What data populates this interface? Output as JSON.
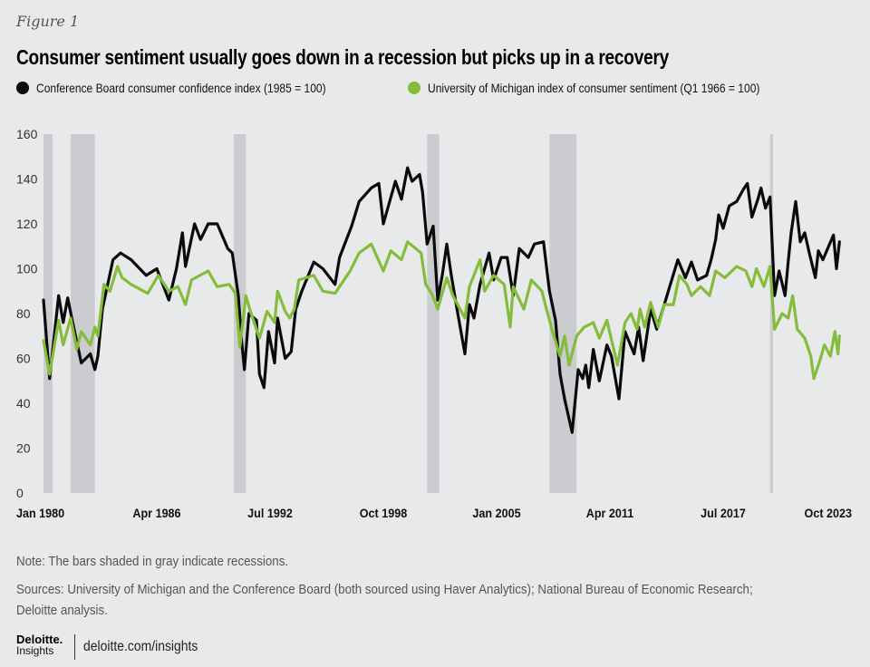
{
  "figure_label": "Figure 1",
  "chart_data": {
    "type": "line",
    "title": "Consumer sentiment usually goes down in a recession but picks up in a recovery",
    "xlabel": "",
    "ylabel": "",
    "ylim": [
      0,
      160
    ],
    "y_ticks": [
      "0",
      "20",
      "40",
      "60",
      "80",
      "100",
      "120",
      "140",
      "160"
    ],
    "x_range": [
      "1980-01",
      "2023-12"
    ],
    "x_ticks": [
      {
        "date": "1980-01",
        "label": "Jan 1980"
      },
      {
        "date": "1986-04",
        "label": "Apr 1986"
      },
      {
        "date": "1992-07",
        "label": "Jul 1992"
      },
      {
        "date": "1998-10",
        "label": "Oct 1998"
      },
      {
        "date": "2005-01",
        "label": "Jan 2005"
      },
      {
        "date": "2011-04",
        "label": "Apr 2011"
      },
      {
        "date": "2017-07",
        "label": "Jul 2017"
      },
      {
        "date": "2023-10",
        "label": "Oct 2023"
      }
    ],
    "grid": false,
    "legend_position": "top-left",
    "recessions": [
      [
        "1980-01",
        "1980-07"
      ],
      [
        "1981-07",
        "1982-11"
      ],
      [
        "1990-07",
        "1991-03"
      ],
      [
        "2001-03",
        "2001-11"
      ],
      [
        "2007-12",
        "2009-06"
      ],
      [
        "2020-02",
        "2020-04"
      ]
    ],
    "recession_color": "#cbcccf",
    "series": [
      {
        "name": "Conference Board consumer confidence index (1985 = 100)",
        "color": "#0a0a0a",
        "points": [
          [
            "1980-01",
            86
          ],
          [
            "1980-05",
            51
          ],
          [
            "1980-11",
            88
          ],
          [
            "1981-02",
            76
          ],
          [
            "1981-05",
            87
          ],
          [
            "1981-08",
            77
          ],
          [
            "1982-02",
            58
          ],
          [
            "1982-08",
            62
          ],
          [
            "1982-11",
            55
          ],
          [
            "1983-01",
            61
          ],
          [
            "1983-04",
            82
          ],
          [
            "1983-11",
            104
          ],
          [
            "1984-04",
            107
          ],
          [
            "1984-11",
            104
          ],
          [
            "1985-09",
            97
          ],
          [
            "1986-04",
            100
          ],
          [
            "1986-12",
            86
          ],
          [
            "1987-05",
            100
          ],
          [
            "1987-09",
            116
          ],
          [
            "1987-11",
            101
          ],
          [
            "1988-05",
            120
          ],
          [
            "1988-09",
            113
          ],
          [
            "1989-02",
            120
          ],
          [
            "1989-08",
            120
          ],
          [
            "1990-03",
            109
          ],
          [
            "1990-06",
            107
          ],
          [
            "1990-10",
            88
          ],
          [
            "1990-12",
            69
          ],
          [
            "1991-02",
            55
          ],
          [
            "1991-05",
            80
          ],
          [
            "1991-10",
            77
          ],
          [
            "1991-12",
            53
          ],
          [
            "1992-03",
            47
          ],
          [
            "1992-06",
            72
          ],
          [
            "1992-10",
            58
          ],
          [
            "1992-12",
            78
          ],
          [
            "1993-05",
            60
          ],
          [
            "1993-09",
            63
          ],
          [
            "1993-12",
            82
          ],
          [
            "1994-04",
            90
          ],
          [
            "1994-12",
            103
          ],
          [
            "1995-06",
            100
          ],
          [
            "1996-02",
            93
          ],
          [
            "1996-05",
            105
          ],
          [
            "1996-09",
            112
          ],
          [
            "1997-01",
            119
          ],
          [
            "1997-06",
            130
          ],
          [
            "1998-02",
            136
          ],
          [
            "1998-07",
            138
          ],
          [
            "1998-10",
            120
          ],
          [
            "1999-06",
            139
          ],
          [
            "1999-10",
            131
          ],
          [
            "2000-02",
            145
          ],
          [
            "2000-05",
            139
          ],
          [
            "2000-10",
            142
          ],
          [
            "2000-12",
            134
          ],
          [
            "2001-03",
            111
          ],
          [
            "2001-07",
            119
          ],
          [
            "2001-10",
            86
          ],
          [
            "2002-01",
            97
          ],
          [
            "2002-04",
            111
          ],
          [
            "2002-07",
            97
          ],
          [
            "2002-11",
            81
          ],
          [
            "2003-04",
            62
          ],
          [
            "2003-07",
            84
          ],
          [
            "2003-10",
            78
          ],
          [
            "2004-02",
            93
          ],
          [
            "2004-08",
            107
          ],
          [
            "2004-11",
            95
          ],
          [
            "2005-04",
            105
          ],
          [
            "2005-08",
            105
          ],
          [
            "2005-12",
            88
          ],
          [
            "2006-04",
            109
          ],
          [
            "2006-10",
            105
          ],
          [
            "2007-02",
            111
          ],
          [
            "2007-08",
            112
          ],
          [
            "2007-12",
            90
          ],
          [
            "2008-04",
            77
          ],
          [
            "2008-07",
            53
          ],
          [
            "2008-10",
            42
          ],
          [
            "2009-03",
            27
          ],
          [
            "2009-07",
            55
          ],
          [
            "2009-10",
            51
          ],
          [
            "2009-12",
            57
          ],
          [
            "2010-02",
            47
          ],
          [
            "2010-05",
            64
          ],
          [
            "2010-09",
            50
          ],
          [
            "2011-02",
            66
          ],
          [
            "2011-05",
            61
          ],
          [
            "2011-10",
            42
          ],
          [
            "2012-02",
            72
          ],
          [
            "2012-08",
            62
          ],
          [
            "2012-11",
            74
          ],
          [
            "2013-02",
            59
          ],
          [
            "2013-07",
            82
          ],
          [
            "2013-11",
            73
          ],
          [
            "2014-04",
            84
          ],
          [
            "2014-08",
            93
          ],
          [
            "2015-01",
            104
          ],
          [
            "2015-06",
            96
          ],
          [
            "2015-10",
            103
          ],
          [
            "2016-02",
            95
          ],
          [
            "2016-08",
            97
          ],
          [
            "2016-11",
            104
          ],
          [
            "2017-02",
            113
          ],
          [
            "2017-04",
            124
          ],
          [
            "2017-07",
            118
          ],
          [
            "2017-11",
            128
          ],
          [
            "2018-04",
            130
          ],
          [
            "2018-08",
            135
          ],
          [
            "2018-11",
            138
          ],
          [
            "2019-02",
            123
          ],
          [
            "2019-06",
            131
          ],
          [
            "2019-08",
            136
          ],
          [
            "2019-11",
            127
          ],
          [
            "2020-02",
            132
          ],
          [
            "2020-05",
            88
          ],
          [
            "2020-08",
            99
          ],
          [
            "2020-12",
            88
          ],
          [
            "2021-02",
            103
          ],
          [
            "2021-04",
            116
          ],
          [
            "2021-07",
            130
          ],
          [
            "2021-10",
            112
          ],
          [
            "2022-01",
            116
          ],
          [
            "2022-04",
            107
          ],
          [
            "2022-08",
            96
          ],
          [
            "2022-10",
            108
          ],
          [
            "2023-01",
            104
          ],
          [
            "2023-08",
            115
          ],
          [
            "2023-10",
            100
          ],
          [
            "2023-12",
            112
          ]
        ]
      },
      {
        "name": "University of Michigan index of consumer sentiment (Q1 1966 = 100)",
        "color": "#86bc3b",
        "points": [
          [
            "1980-01",
            68
          ],
          [
            "1980-05",
            53
          ],
          [
            "1980-11",
            77
          ],
          [
            "1981-02",
            66
          ],
          [
            "1981-07",
            78
          ],
          [
            "1981-11",
            64
          ],
          [
            "1982-02",
            72
          ],
          [
            "1982-05",
            69
          ],
          [
            "1982-08",
            66
          ],
          [
            "1982-11",
            74
          ],
          [
            "1983-01",
            70
          ],
          [
            "1983-05",
            93
          ],
          [
            "1983-09",
            90
          ],
          [
            "1984-02",
            101
          ],
          [
            "1984-05",
            96
          ],
          [
            "1984-11",
            93
          ],
          [
            "1985-10",
            89
          ],
          [
            "1986-05",
            97
          ],
          [
            "1986-12",
            90
          ],
          [
            "1987-06",
            92
          ],
          [
            "1987-11",
            84
          ],
          [
            "1988-03",
            95
          ],
          [
            "1989-02",
            99
          ],
          [
            "1989-08",
            92
          ],
          [
            "1990-04",
            93
          ],
          [
            "1990-08",
            89
          ],
          [
            "1990-11",
            65
          ],
          [
            "1991-03",
            88
          ],
          [
            "1991-06",
            81
          ],
          [
            "1991-12",
            69
          ],
          [
            "1992-05",
            81
          ],
          [
            "1992-10",
            76
          ],
          [
            "1992-12",
            90
          ],
          [
            "1993-05",
            81
          ],
          [
            "1993-08",
            78
          ],
          [
            "1993-11",
            82
          ],
          [
            "1994-02",
            95
          ],
          [
            "1994-12",
            97
          ],
          [
            "1995-06",
            90
          ],
          [
            "1996-02",
            89
          ],
          [
            "1996-12",
            99
          ],
          [
            "1997-06",
            107
          ],
          [
            "1998-02",
            111
          ],
          [
            "1998-10",
            99
          ],
          [
            "1999-03",
            108
          ],
          [
            "1999-10",
            104
          ],
          [
            "2000-02",
            112
          ],
          [
            "2000-11",
            107
          ],
          [
            "2001-02",
            93
          ],
          [
            "2001-06",
            89
          ],
          [
            "2001-10",
            82
          ],
          [
            "2002-04",
            96
          ],
          [
            "2002-08",
            88
          ],
          [
            "2003-04",
            78
          ],
          [
            "2003-07",
            92
          ],
          [
            "2004-02",
            104
          ],
          [
            "2004-05",
            90
          ],
          [
            "2004-11",
            97
          ],
          [
            "2005-06",
            93
          ],
          [
            "2005-10",
            74
          ],
          [
            "2005-12",
            92
          ],
          [
            "2006-07",
            82
          ],
          [
            "2006-12",
            95
          ],
          [
            "2007-07",
            90
          ],
          [
            "2007-10",
            82
          ],
          [
            "2008-02",
            72
          ],
          [
            "2008-07",
            61
          ],
          [
            "2008-10",
            70
          ],
          [
            "2009-01",
            57
          ],
          [
            "2009-06",
            70
          ],
          [
            "2009-11",
            74
          ],
          [
            "2010-05",
            76
          ],
          [
            "2010-09",
            69
          ],
          [
            "2011-02",
            77
          ],
          [
            "2011-09",
            57
          ],
          [
            "2012-02",
            76
          ],
          [
            "2012-06",
            80
          ],
          [
            "2012-10",
            73
          ],
          [
            "2012-12",
            82
          ],
          [
            "2013-03",
            74
          ],
          [
            "2013-07",
            85
          ],
          [
            "2013-12",
            74
          ],
          [
            "2014-04",
            84
          ],
          [
            "2014-10",
            84
          ],
          [
            "2015-02",
            97
          ],
          [
            "2015-07",
            93
          ],
          [
            "2015-10",
            88
          ],
          [
            "2016-04",
            92
          ],
          [
            "2016-10",
            88
          ],
          [
            "2017-02",
            99
          ],
          [
            "2017-08",
            96
          ],
          [
            "2018-04",
            101
          ],
          [
            "2018-10",
            99
          ],
          [
            "2019-02",
            92
          ],
          [
            "2019-05",
            100
          ],
          [
            "2019-10",
            92
          ],
          [
            "2020-02",
            101
          ],
          [
            "2020-05",
            73
          ],
          [
            "2020-10",
            80
          ],
          [
            "2021-02",
            78
          ],
          [
            "2021-05",
            88
          ],
          [
            "2021-08",
            73
          ],
          [
            "2022-01",
            69
          ],
          [
            "2022-05",
            61
          ],
          [
            "2022-07",
            51
          ],
          [
            "2022-11",
            59
          ],
          [
            "2023-02",
            66
          ],
          [
            "2023-06",
            61
          ],
          [
            "2023-09",
            72
          ],
          [
            "2023-11",
            62
          ],
          [
            "2023-12",
            70
          ]
        ]
      }
    ]
  },
  "notes": {
    "note": "Note: The bars shaded in gray indicate recessions.",
    "sources_line1": "Sources: University of Michigan and the Conference Board (both sourced using Haver Analytics); National Bureau of Economic Research;",
    "sources_line2": "Deloitte analysis."
  },
  "footer": {
    "logo_top": "Deloitte.",
    "logo_bottom": "Insights",
    "url": "deloitte.com/insights"
  }
}
